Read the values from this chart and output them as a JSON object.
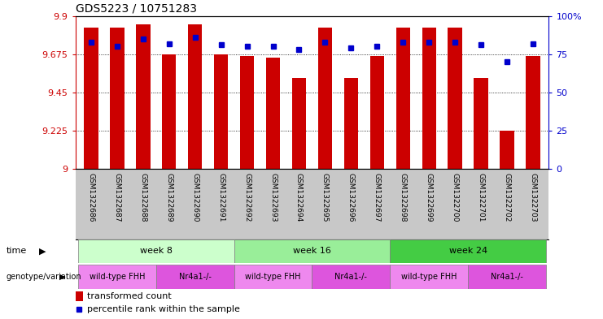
{
  "title": "GDS5223 / 10751283",
  "samples": [
    "GSM1322686",
    "GSM1322687",
    "GSM1322688",
    "GSM1322689",
    "GSM1322690",
    "GSM1322691",
    "GSM1322692",
    "GSM1322693",
    "GSM1322694",
    "GSM1322695",
    "GSM1322696",
    "GSM1322697",
    "GSM1322698",
    "GSM1322699",
    "GSM1322700",
    "GSM1322701",
    "GSM1322702",
    "GSM1322703"
  ],
  "transformed_count": [
    9.83,
    9.83,
    9.85,
    9.675,
    9.85,
    9.675,
    9.665,
    9.655,
    9.535,
    9.83,
    9.535,
    9.665,
    9.83,
    9.83,
    9.83,
    9.535,
    9.225,
    9.665
  ],
  "percentile_rank": [
    83,
    80,
    85,
    82,
    86,
    81,
    80,
    80,
    78,
    83,
    79,
    80,
    83,
    83,
    83,
    81,
    70,
    82
  ],
  "y_min": 9.0,
  "y_max": 9.9,
  "y_ticks": [
    9.0,
    9.225,
    9.45,
    9.675,
    9.9
  ],
  "y_tick_labels": [
    "9",
    "9.225",
    "9.45",
    "9.675",
    "9.9"
  ],
  "y2_ticks": [
    0,
    25,
    50,
    75,
    100
  ],
  "bar_color": "#cc0000",
  "dot_color": "#0000cc",
  "week8_color": "#ccffcc",
  "week16_color": "#99ee99",
  "week24_color": "#44cc44",
  "wt_color": "#ee88ee",
  "nr4a1_color": "#dd55dd",
  "grid_color": "#000000",
  "border_color": "#000000",
  "xlabel_bg": "#c8c8c8"
}
